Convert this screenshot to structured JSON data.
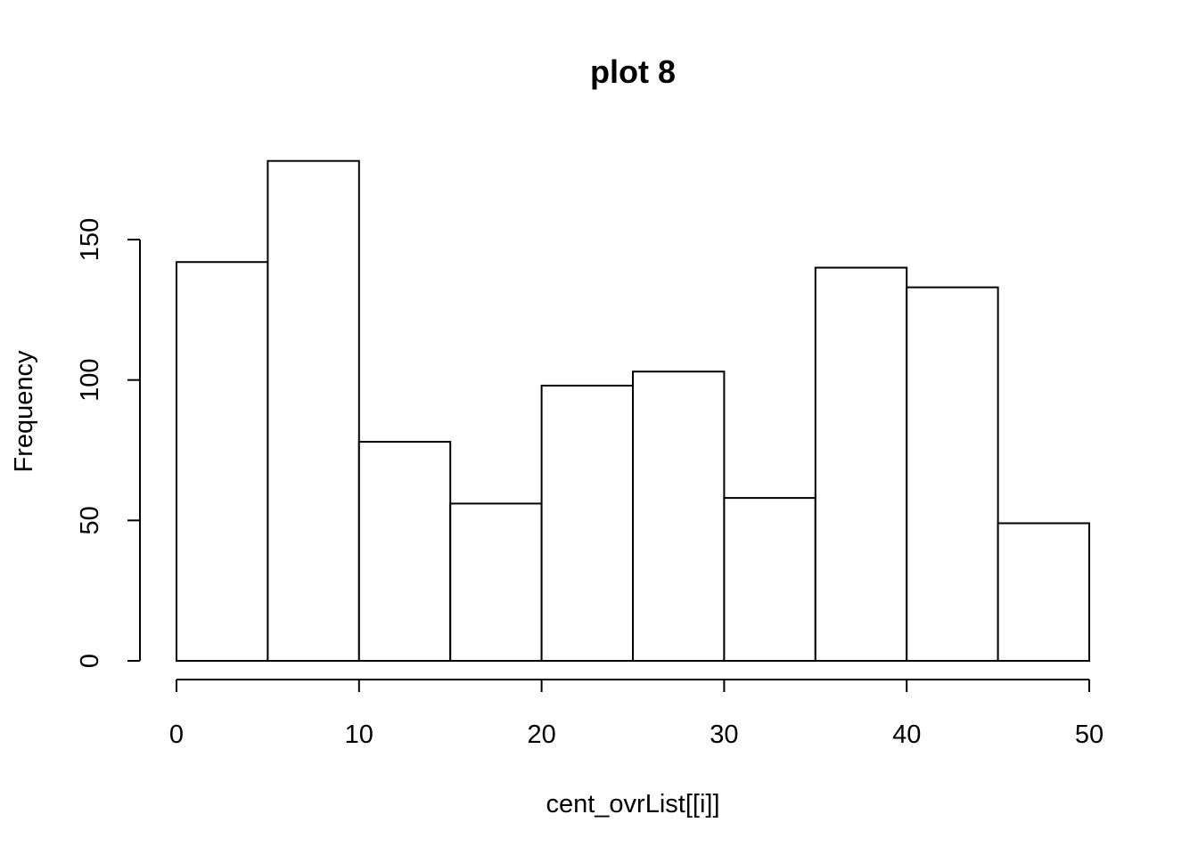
{
  "chart_data": {
    "type": "bar",
    "title": "plot 8",
    "xlabel": "cent_ovrList[[i]]",
    "ylabel": "Frequency",
    "bins": [
      [
        0,
        5
      ],
      [
        5,
        10
      ],
      [
        10,
        15
      ],
      [
        15,
        20
      ],
      [
        20,
        25
      ],
      [
        25,
        30
      ],
      [
        30,
        35
      ],
      [
        35,
        40
      ],
      [
        40,
        45
      ],
      [
        45,
        50
      ]
    ],
    "values": [
      142,
      178,
      78,
      56,
      98,
      103,
      58,
      140,
      133,
      49
    ],
    "xlim": [
      0,
      50
    ],
    "ylim": [
      0,
      150
    ],
    "x_ticks": [
      0,
      10,
      20,
      30,
      40,
      50
    ],
    "y_ticks": [
      0,
      50,
      100,
      150
    ],
    "grid": false,
    "bar_fill": "#ffffff",
    "bar_stroke": "#000000"
  }
}
